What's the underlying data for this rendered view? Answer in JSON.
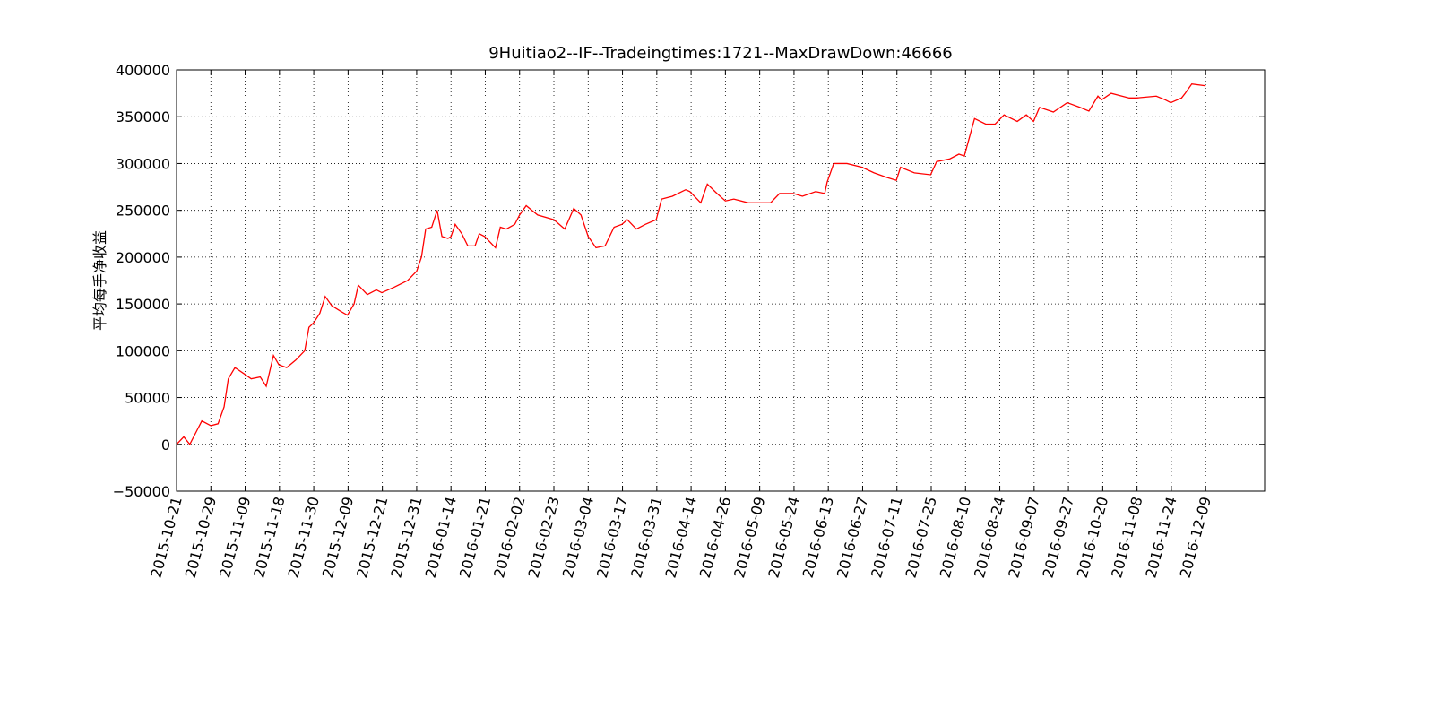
{
  "chart_data": {
    "type": "line",
    "title": "9Huitiao2--IF--Tradeingtimes:1721--MaxDrawDown:46666",
    "y_label": "平均每手净收益",
    "color": "#ff0000",
    "grid": true,
    "x": [
      0,
      12,
      22,
      34,
      42,
      57,
      69,
      79,
      86,
      97,
      113,
      124,
      139,
      149,
      161,
      170,
      183,
      198,
      213,
      220,
      228,
      238,
      247,
      258,
      273,
      284,
      295,
      302,
      317,
      332,
      341,
      362,
      384,
      399,
      407,
      414,
      424,
      433,
      441,
      451,
      456,
      463,
      474,
      484,
      496,
      503,
      512,
      530,
      538,
      548,
      562,
      570,
      581,
      600,
      627,
      645,
      660,
      672,
      684,
      697,
      712,
      727,
      740,
      749,
      764,
      779,
      797,
      806,
      824,
      846,
      853,
      871,
      882,
      898,
      912,
      926,
      950,
      968,
      987,
      1002,
      1025,
      1040,
      1062,
      1077,
      1081,
      1092,
      1114,
      1139,
      1159,
      1181,
      1196,
      1203,
      1226,
      1253,
      1263,
      1285,
      1300,
      1309,
      1326,
      1345,
      1360,
      1375,
      1397,
      1412,
      1424,
      1434,
      1457,
      1480,
      1501,
      1516,
      1531,
      1537,
      1553,
      1583,
      1595,
      1628,
      1643,
      1652,
      1670,
      1676,
      1687,
      1710
    ],
    "values": [
      0,
      8000,
      0,
      15000,
      25000,
      20000,
      22000,
      40000,
      70000,
      82000,
      75000,
      70000,
      72000,
      62000,
      95000,
      85000,
      82000,
      90000,
      100000,
      125000,
      130000,
      140000,
      158000,
      148000,
      142000,
      138000,
      150000,
      170000,
      160000,
      165000,
      162000,
      168000,
      175000,
      185000,
      200000,
      230000,
      232000,
      250000,
      222000,
      220000,
      222000,
      235000,
      225000,
      212000,
      212000,
      225000,
      222000,
      210000,
      232000,
      230000,
      235000,
      245000,
      255000,
      245000,
      240000,
      230000,
      252000,
      245000,
      222000,
      210000,
      212000,
      232000,
      235000,
      240000,
      230000,
      235000,
      240000,
      262000,
      265000,
      272000,
      270000,
      258000,
      278000,
      268000,
      260000,
      262000,
      258000,
      258000,
      258000,
      268000,
      268000,
      265000,
      270000,
      268000,
      280000,
      300000,
      300000,
      296000,
      290000,
      285000,
      282000,
      296000,
      290000,
      288000,
      302000,
      305000,
      310000,
      308000,
      348000,
      342000,
      342000,
      352000,
      345000,
      352000,
      345000,
      360000,
      355000,
      365000,
      360000,
      356000,
      372000,
      368000,
      375000,
      370000,
      370000,
      372000,
      368000,
      365000,
      370000,
      375000,
      385000,
      383000
    ],
    "xlim": [
      0,
      1808
    ],
    "xticks": [
      {
        "value": 0,
        "label": "2015-10-21"
      },
      {
        "value": 57,
        "label": "2015-10-29"
      },
      {
        "value": 114,
        "label": "2015-11-09"
      },
      {
        "value": 171,
        "label": "2015-11-18"
      },
      {
        "value": 228,
        "label": "2015-11-30"
      },
      {
        "value": 285,
        "label": "2015-12-09"
      },
      {
        "value": 342,
        "label": "2015-12-21"
      },
      {
        "value": 399,
        "label": "2015-12-31"
      },
      {
        "value": 456,
        "label": "2016-01-14"
      },
      {
        "value": 513,
        "label": "2016-01-21"
      },
      {
        "value": 570,
        "label": "2016-02-02"
      },
      {
        "value": 627,
        "label": "2016-02-23"
      },
      {
        "value": 684,
        "label": "2016-03-04"
      },
      {
        "value": 741,
        "label": "2016-03-17"
      },
      {
        "value": 798,
        "label": "2016-03-31"
      },
      {
        "value": 855,
        "label": "2016-04-14"
      },
      {
        "value": 912,
        "label": "2016-04-26"
      },
      {
        "value": 969,
        "label": "2016-05-09"
      },
      {
        "value": 1026,
        "label": "2016-05-24"
      },
      {
        "value": 1083,
        "label": "2016-06-13"
      },
      {
        "value": 1140,
        "label": "2016-06-27"
      },
      {
        "value": 1197,
        "label": "2016-07-11"
      },
      {
        "value": 1254,
        "label": "2016-07-25"
      },
      {
        "value": 1311,
        "label": "2016-08-10"
      },
      {
        "value": 1368,
        "label": "2016-08-24"
      },
      {
        "value": 1425,
        "label": "2016-09-07"
      },
      {
        "value": 1482,
        "label": "2016-09-27"
      },
      {
        "value": 1539,
        "label": "2016-10-20"
      },
      {
        "value": 1596,
        "label": "2016-11-08"
      },
      {
        "value": 1653,
        "label": "2016-11-24"
      },
      {
        "value": 1710,
        "label": "2016-12-09"
      }
    ],
    "ylim": [
      -50000,
      400000
    ],
    "yticks": [
      {
        "value": -50000,
        "label": "−50000"
      },
      0,
      50000,
      100000,
      150000,
      200000,
      250000,
      300000,
      350000,
      400000
    ]
  }
}
